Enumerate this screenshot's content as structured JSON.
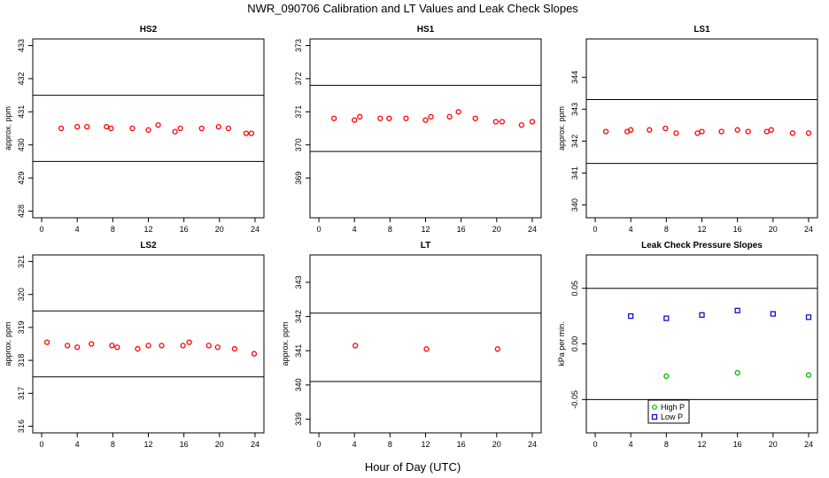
{
  "figure": {
    "title": "NWR_090706  Calibration and LT Values and Leak Check Slopes",
    "xlabel": "Hour of Day (UTC)"
  },
  "chart_data": [
    {
      "type": "scatter",
      "title": "HS2",
      "ylabel": "approx. ppm",
      "xlim": [
        -1,
        25
      ],
      "xticks": [
        0,
        4,
        8,
        12,
        16,
        20,
        24
      ],
      "ylim": [
        427.8,
        433.2
      ],
      "yticks": [
        428,
        429,
        430,
        431,
        432,
        433
      ],
      "hlines": [
        431.5,
        429.5
      ],
      "series": [
        {
          "color": "#ff0000",
          "x": [
            2.2,
            4.0,
            5.1,
            7.3,
            7.8,
            10.2,
            12.0,
            13.1,
            15.0,
            15.6,
            18.0,
            19.9,
            21.0,
            23.0,
            23.6
          ],
          "y": [
            430.5,
            430.55,
            430.55,
            430.55,
            430.5,
            430.5,
            430.45,
            430.6,
            430.4,
            430.5,
            430.5,
            430.55,
            430.5,
            430.35,
            430.35
          ]
        }
      ]
    },
    {
      "type": "scatter",
      "title": "HS1",
      "ylabel": "",
      "xlim": [
        -1,
        25
      ],
      "xticks": [
        0,
        4,
        8,
        12,
        16,
        20,
        24
      ],
      "ylim": [
        367.8,
        373.2
      ],
      "yticks": [
        369,
        370,
        371,
        372,
        373
      ],
      "hlines": [
        371.8,
        369.8
      ],
      "series": [
        {
          "color": "#ff0000",
          "x": [
            1.7,
            4.0,
            4.6,
            6.9,
            7.9,
            9.8,
            12.0,
            12.6,
            14.7,
            15.7,
            17.6,
            19.9,
            20.6,
            22.8,
            24.0
          ],
          "y": [
            370.8,
            370.75,
            370.85,
            370.8,
            370.8,
            370.8,
            370.75,
            370.85,
            370.85,
            371.0,
            370.8,
            370.7,
            370.7,
            370.6,
            370.7
          ]
        }
      ]
    },
    {
      "type": "scatter",
      "title": "LS1",
      "ylabel": "approx. ppm",
      "xlim": [
        -1,
        25
      ],
      "xticks": [
        0,
        4,
        8,
        12,
        16,
        20,
        24
      ],
      "ylim": [
        339.6,
        345.2
      ],
      "yticks": [
        340,
        341,
        342,
        343,
        344
      ],
      "hlines": [
        343.3,
        341.3
      ],
      "series": [
        {
          "color": "#ff0000",
          "x": [
            1.2,
            3.6,
            4.0,
            6.1,
            7.9,
            9.1,
            11.5,
            12.0,
            14.2,
            16.0,
            17.2,
            19.3,
            19.8,
            22.2,
            24.0
          ],
          "y": [
            342.3,
            342.3,
            342.35,
            342.35,
            342.4,
            342.25,
            342.25,
            342.3,
            342.3,
            342.35,
            342.3,
            342.3,
            342.35,
            342.25,
            342.25
          ]
        }
      ]
    },
    {
      "type": "scatter",
      "title": "LS2",
      "ylabel": "approx. ppm",
      "xlim": [
        -1,
        25
      ],
      "xticks": [
        0,
        4,
        8,
        12,
        16,
        20,
        24
      ],
      "ylim": [
        315.8,
        321.2
      ],
      "yticks": [
        316,
        317,
        318,
        319,
        320,
        321
      ],
      "hlines": [
        319.5,
        317.5
      ],
      "series": [
        {
          "color": "#ff0000",
          "x": [
            0.6,
            2.9,
            4.0,
            5.6,
            7.9,
            8.5,
            10.8,
            12.0,
            13.5,
            15.9,
            16.6,
            18.8,
            19.8,
            21.7,
            23.9
          ],
          "y": [
            318.55,
            318.45,
            318.4,
            318.5,
            318.45,
            318.4,
            318.35,
            318.45,
            318.45,
            318.45,
            318.55,
            318.45,
            318.4,
            318.35,
            318.2
          ]
        }
      ]
    },
    {
      "type": "scatter",
      "title": "LT",
      "ylabel": "approx. ppm",
      "xlim": [
        -1,
        25
      ],
      "xticks": [
        0,
        4,
        8,
        12,
        16,
        20,
        24
      ],
      "ylim": [
        338.6,
        343.8
      ],
      "yticks": [
        339,
        340,
        341,
        342,
        343
      ],
      "hlines": [
        342.1,
        340.1
      ],
      "series": [
        {
          "color": "#ff0000",
          "x": [
            4.1,
            12.1,
            20.1
          ],
          "y": [
            341.15,
            341.05,
            341.05
          ]
        }
      ]
    },
    {
      "type": "scatter",
      "title": "Leak Check Pressure Slopes",
      "ylabel": "kPa per min.",
      "xlim": [
        -1,
        25
      ],
      "xticks": [
        0,
        4,
        8,
        12,
        16,
        20,
        24
      ],
      "ylim": [
        -0.08,
        0.08
      ],
      "yticks": [
        -0.05,
        0.0,
        0.05
      ],
      "ytick_labels": [
        "-0.05",
        "0.00",
        "0.05"
      ],
      "hlines": [
        0.05,
        -0.05
      ],
      "legend": {
        "position": "bottom-center",
        "entries": [
          "High P",
          "Low P"
        ]
      },
      "series": [
        {
          "name": "High P",
          "color": "#00bb00",
          "x": [
            8.0,
            16.0,
            24.0
          ],
          "y": [
            -0.029,
            -0.026,
            -0.028
          ]
        },
        {
          "name": "Low P",
          "color": "#0000cc",
          "x": [
            4.0,
            8.0,
            12.0,
            16.0,
            20.0,
            24.0
          ],
          "y": [
            0.025,
            0.023,
            0.026,
            0.03,
            0.027,
            0.024
          ]
        }
      ]
    }
  ]
}
